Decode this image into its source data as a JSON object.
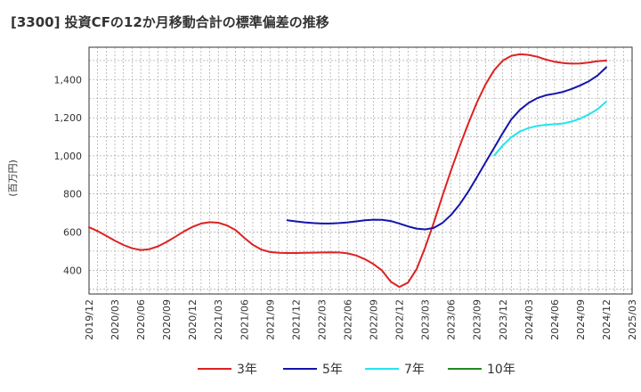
{
  "chart_data": {
    "type": "line",
    "title": "[3300]  投資CFの12か月移動合計の標準偏差の推移",
    "ylabel": "(百万円)",
    "xlabel": "",
    "ylim": [
      275,
      1570
    ],
    "xlim": [
      "2019-12",
      "2025-03"
    ],
    "grid": true,
    "legend_position": "bottom",
    "y_ticks": [
      400,
      600,
      800,
      1000,
      1200,
      1400
    ],
    "y_tick_labels": [
      "400",
      "600",
      "800",
      "1,000",
      "1,200",
      "1,400"
    ],
    "x_ticks": [
      "2019-12",
      "2020-03",
      "2020-06",
      "2020-09",
      "2020-12",
      "2021-03",
      "2021-06",
      "2021-09",
      "2021-12",
      "2022-03",
      "2022-06",
      "2022-09",
      "2022-12",
      "2023-03",
      "2023-06",
      "2023-09",
      "2023-12",
      "2024-03",
      "2024-06",
      "2024-09",
      "2024-12",
      "2025-03"
    ],
    "x_tick_labels": [
      "2019/12",
      "2020/03",
      "2020/06",
      "2020/09",
      "2020/12",
      "2021/03",
      "2021/06",
      "2021/09",
      "2021/12",
      "2022/03",
      "2022/06",
      "2022/09",
      "2022/12",
      "2023/03",
      "2023/06",
      "2023/09",
      "2023/12",
      "2024/03",
      "2024/06",
      "2024/09",
      "2024/12",
      "2025/03"
    ],
    "series": [
      {
        "name": "3年",
        "color": "#dd2222",
        "x": [
          "2019-12",
          "2020-01",
          "2020-02",
          "2020-03",
          "2020-04",
          "2020-05",
          "2020-06",
          "2020-07",
          "2020-08",
          "2020-09",
          "2020-10",
          "2020-11",
          "2020-12",
          "2021-01",
          "2021-02",
          "2021-03",
          "2021-04",
          "2021-05",
          "2021-06",
          "2021-07",
          "2021-08",
          "2021-09",
          "2021-10",
          "2021-11",
          "2021-12",
          "2022-01",
          "2022-02",
          "2022-03",
          "2022-04",
          "2022-05",
          "2022-06",
          "2022-07",
          "2022-08",
          "2022-09",
          "2022-10",
          "2022-11",
          "2022-12",
          "2023-01",
          "2023-02",
          "2023-03",
          "2023-04",
          "2023-05",
          "2023-06",
          "2023-07",
          "2023-08",
          "2023-09",
          "2023-10",
          "2023-11",
          "2023-12",
          "2024-01",
          "2024-02",
          "2024-03",
          "2024-04",
          "2024-05",
          "2024-06",
          "2024-07",
          "2024-08",
          "2024-09",
          "2024-10",
          "2024-11",
          "2024-12"
        ],
        "values": [
          625,
          605,
          580,
          555,
          532,
          515,
          506,
          510,
          525,
          548,
          575,
          603,
          627,
          645,
          652,
          649,
          635,
          610,
          570,
          533,
          508,
          495,
          491,
          490,
          490,
          491,
          492,
          493,
          494,
          493,
          488,
          477,
          458,
          432,
          398,
          340,
          312,
          335,
          405,
          520,
          650,
          790,
          925,
          1050,
          1170,
          1280,
          1375,
          1450,
          1500,
          1525,
          1533,
          1530,
          1520,
          1505,
          1494,
          1487,
          1484,
          1485,
          1490,
          1497,
          1500
        ]
      },
      {
        "name": "5年",
        "color": "#1414aa",
        "x": [
          "2021-11",
          "2021-12",
          "2022-01",
          "2022-02",
          "2022-03",
          "2022-04",
          "2022-05",
          "2022-06",
          "2022-07",
          "2022-08",
          "2022-09",
          "2022-10",
          "2022-11",
          "2022-12",
          "2023-01",
          "2023-02",
          "2023-03",
          "2023-04",
          "2023-05",
          "2023-06",
          "2023-07",
          "2023-08",
          "2023-09",
          "2023-10",
          "2023-11",
          "2023-12",
          "2024-01",
          "2024-02",
          "2024-03",
          "2024-04",
          "2024-05",
          "2024-06",
          "2024-07",
          "2024-08",
          "2024-09",
          "2024-10",
          "2024-11",
          "2024-12"
        ],
        "values": [
          662,
          656,
          651,
          647,
          645,
          645,
          647,
          651,
          656,
          662,
          665,
          664,
          658,
          645,
          630,
          618,
          614,
          622,
          648,
          690,
          745,
          812,
          888,
          966,
          1042,
          1120,
          1192,
          1242,
          1278,
          1303,
          1318,
          1326,
          1336,
          1351,
          1370,
          1392,
          1422,
          1465
        ]
      },
      {
        "name": "7年",
        "color": "#22e5ee",
        "x": [
          "2023-11",
          "2023-12",
          "2024-01",
          "2024-02",
          "2024-03",
          "2024-04",
          "2024-05",
          "2024-06",
          "2024-07",
          "2024-08",
          "2024-09",
          "2024-10",
          "2024-11",
          "2024-12"
        ],
        "values": [
          1002,
          1055,
          1098,
          1128,
          1146,
          1157,
          1163,
          1166,
          1170,
          1180,
          1196,
          1218,
          1245,
          1285
        ]
      },
      {
        "name": "10年",
        "color": "#228822",
        "x": [],
        "values": []
      }
    ]
  }
}
